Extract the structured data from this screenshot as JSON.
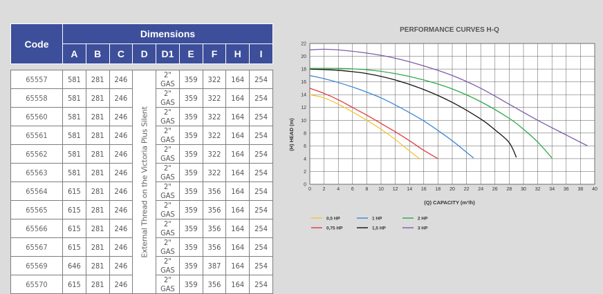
{
  "table": {
    "code_header": "Code",
    "dimensions_header": "Dimensions",
    "columns": [
      "A",
      "B",
      "C",
      "D",
      "D1",
      "E",
      "F",
      "H",
      "I"
    ],
    "thread_label": "External Thread on the Victoria Plus Silent",
    "rows": [
      {
        "code": "65557",
        "A": "581",
        "B": "281",
        "C": "246",
        "D1": "2\" GAS",
        "E": "359",
        "F": "322",
        "H": "164",
        "I": "254"
      },
      {
        "code": "65558",
        "A": "581",
        "B": "281",
        "C": "246",
        "D1": "2\" GAS",
        "E": "359",
        "F": "322",
        "H": "164",
        "I": "254"
      },
      {
        "code": "65560",
        "A": "581",
        "B": "281",
        "C": "246",
        "D1": "2\" GAS",
        "E": "359",
        "F": "322",
        "H": "164",
        "I": "254"
      },
      {
        "code": "65561",
        "A": "581",
        "B": "281",
        "C": "246",
        "D1": "2\" GAS",
        "E": "359",
        "F": "322",
        "H": "164",
        "I": "254"
      },
      {
        "code": "65562",
        "A": "581",
        "B": "281",
        "C": "246",
        "D1": "2\" GAS",
        "E": "359",
        "F": "322",
        "H": "164",
        "I": "254"
      },
      {
        "code": "65563",
        "A": "581",
        "B": "281",
        "C": "246",
        "D1": "2\" GAS",
        "E": "359",
        "F": "322",
        "H": "164",
        "I": "254"
      },
      {
        "code": "65564",
        "A": "615",
        "B": "281",
        "C": "246",
        "D1": "2\" GAS",
        "E": "359",
        "F": "356",
        "H": "164",
        "I": "254"
      },
      {
        "code": "65565",
        "A": "615",
        "B": "281",
        "C": "246",
        "D1": "2\" GAS",
        "E": "359",
        "F": "356",
        "H": "164",
        "I": "254"
      },
      {
        "code": "65566",
        "A": "615",
        "B": "281",
        "C": "246",
        "D1": "2\" GAS",
        "E": "359",
        "F": "356",
        "H": "164",
        "I": "254"
      },
      {
        "code": "65567",
        "A": "615",
        "B": "281",
        "C": "246",
        "D1": "2\" GAS",
        "E": "359",
        "F": "356",
        "H": "164",
        "I": "254"
      },
      {
        "code": "65569",
        "A": "646",
        "B": "281",
        "C": "246",
        "D1": "2\" GAS",
        "E": "359",
        "F": "387",
        "H": "164",
        "I": "254"
      },
      {
        "code": "65570",
        "A": "615",
        "B": "281",
        "C": "246",
        "D1": "2\" GAS",
        "E": "359",
        "F": "356",
        "H": "164",
        "I": "254"
      }
    ],
    "header_color": "#3d4e9a"
  },
  "chart_data": {
    "type": "line",
    "title": "PERFORMANCE CURVES H-Q",
    "xlabel": "(Q) CAPACITY (m³/h)",
    "ylabel": "(H) HEAD (m)",
    "xlim": [
      0,
      40
    ],
    "ylim": [
      0,
      22
    ],
    "xticks": [
      0,
      2,
      4,
      6,
      8,
      10,
      12,
      14,
      16,
      18,
      20,
      22,
      24,
      26,
      28,
      30,
      32,
      34,
      36,
      38,
      40
    ],
    "yticks": [
      0,
      2,
      4,
      6,
      8,
      10,
      12,
      14,
      16,
      18,
      20,
      22
    ],
    "grid": true,
    "series": [
      {
        "name": "0,5 HP",
        "color": "#f5c431",
        "x": [
          0,
          2,
          4,
          6,
          8,
          10,
          12,
          14,
          15.5
        ],
        "y": [
          14,
          13.5,
          12.5,
          11.3,
          10,
          8.6,
          7,
          5.2,
          3.9
        ]
      },
      {
        "name": "0,75 HP",
        "color": "#e03a3a",
        "x": [
          0,
          2,
          4,
          6,
          8,
          10,
          12,
          14,
          16,
          18
        ],
        "y": [
          15,
          14.2,
          13.2,
          12,
          10.8,
          9.5,
          8.2,
          6.8,
          5.3,
          4
        ]
      },
      {
        "name": "1 HP",
        "color": "#3a86d6",
        "x": [
          0,
          2,
          4,
          6,
          8,
          10,
          12,
          14,
          16,
          18,
          20,
          22,
          23
        ],
        "y": [
          17,
          16.5,
          15.9,
          15.2,
          14.4,
          13.5,
          12.4,
          11.2,
          9.9,
          8.4,
          6.8,
          5,
          4.1
        ]
      },
      {
        "name": "1,5 HP",
        "color": "#111111",
        "x": [
          0,
          4,
          8,
          12,
          16,
          20,
          24,
          26,
          28,
          29
        ],
        "y": [
          18,
          17.8,
          17.3,
          16.3,
          14.8,
          12.8,
          10.2,
          8.5,
          6.5,
          4.2
        ]
      },
      {
        "name": "2 HP",
        "color": "#2aa84a",
        "x": [
          0,
          4,
          8,
          12,
          16,
          20,
          24,
          28,
          30,
          32,
          34
        ],
        "y": [
          18.1,
          18.1,
          17.9,
          17.3,
          16.3,
          14.9,
          12.9,
          10.3,
          8.6,
          6.6,
          4.1
        ]
      },
      {
        "name": "3 HP",
        "color": "#7b5ba8",
        "x": [
          0,
          2,
          4,
          8,
          12,
          16,
          20,
          24,
          28,
          32,
          36,
          39
        ],
        "y": [
          21,
          21.1,
          21,
          20.5,
          19.7,
          18.5,
          17,
          15,
          12.5,
          10,
          7.7,
          6
        ]
      }
    ]
  }
}
